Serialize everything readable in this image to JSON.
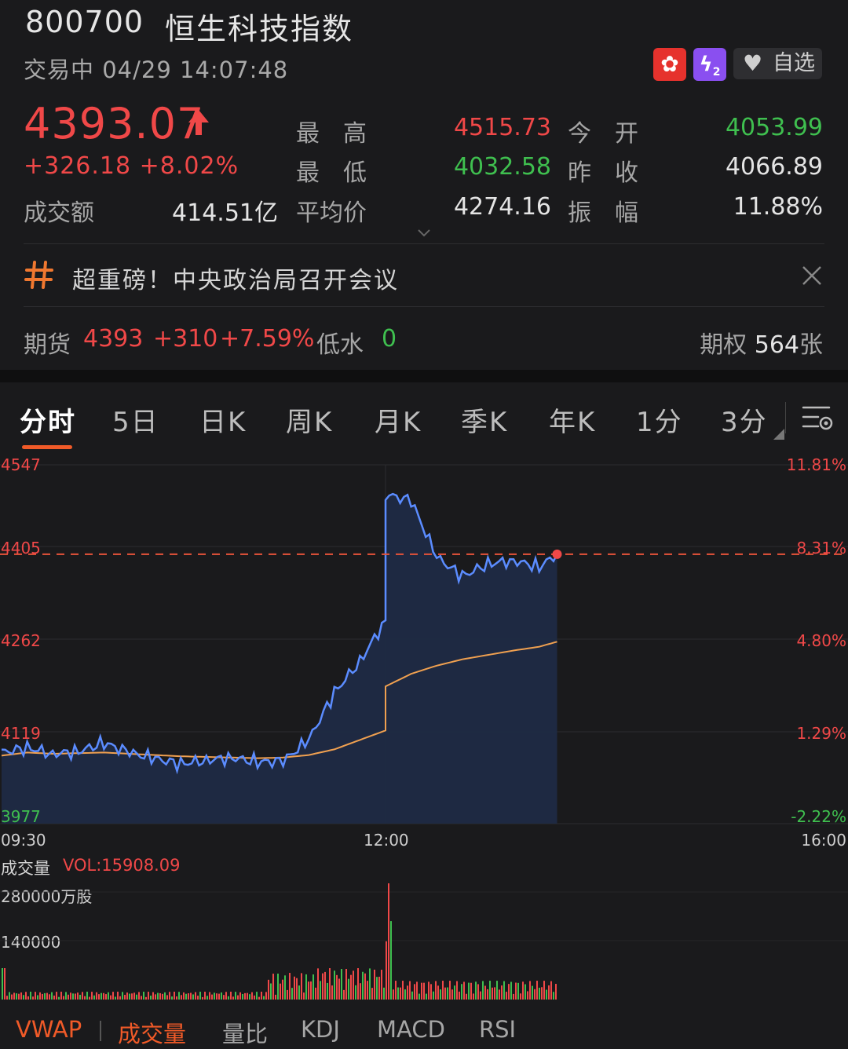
{
  "header": {
    "code": "800700",
    "name": "恒生科技指数",
    "status": "交易中 04/29 14:07:48",
    "badges": {
      "market": "hk-flag-icon",
      "level": "L2"
    },
    "favorite_label": "自选"
  },
  "quote": {
    "price": "4393.07",
    "change": "+326.18 +8.02%",
    "turnover_label": "成交额",
    "turnover_value": "414.51亿",
    "stats": [
      {
        "label": "最　高",
        "value": "4515.73",
        "color": "#f04848"
      },
      {
        "label": "今　开",
        "value": "4053.99",
        "color": "#3fbf4f"
      },
      {
        "label": "最　低",
        "value": "4032.58",
        "color": "#3fbf4f"
      },
      {
        "label": "昨　收",
        "value": "4066.89",
        "color": "#e4e4e4"
      },
      {
        "label": "平均价",
        "value": "4274.16",
        "color": "#e4e4e4"
      },
      {
        "label": "振　幅",
        "value": "11.88%",
        "color": "#e4e4e4"
      }
    ]
  },
  "news": {
    "text": "超重磅！中央政治局召开会议"
  },
  "futures": {
    "label": "期货",
    "price": "4393",
    "change": "+310",
    "pct": "+7.59%",
    "discount_label": "低水",
    "discount_value": "0",
    "options_label": "期权",
    "options_value": "564",
    "options_unit": "张"
  },
  "tabs": [
    "分时",
    "5日",
    "日K",
    "周K",
    "月K",
    "季K",
    "年K",
    "1分",
    "3分"
  ],
  "active_tab": "分时",
  "chart_axis": {
    "price_ticks": [
      "4547",
      "4405",
      "4262",
      "4119",
      "3977"
    ],
    "pct_ticks": [
      "11.81%",
      "8.31%",
      "4.80%",
      "1.29%",
      "-2.22%"
    ],
    "time_ticks": [
      "09:30",
      "12:00",
      "16:00"
    ]
  },
  "volume": {
    "label": "成交量",
    "value": "VOL:15908.09",
    "ticks": [
      "280000万股",
      "140000"
    ]
  },
  "indicator_tabs": [
    "VWAP",
    "成交量",
    "量比",
    "KDJ",
    "MACD",
    "RSI"
  ],
  "active_indicator": "成交量",
  "colors": {
    "up": "#f04848",
    "down": "#3fbf4f",
    "accent": "#f05a28",
    "price_line": "#5b8cff",
    "avg_line": "#f0a050"
  },
  "chart_data": {
    "type": "line",
    "x": [
      "09:30",
      "09:40",
      "09:50",
      "10:00",
      "10:10",
      "10:20",
      "10:30",
      "10:40",
      "10:50",
      "11:00",
      "11:10",
      "11:20",
      "11:30",
      "11:40",
      "11:50",
      "12:00",
      "13:00",
      "13:10",
      "13:20",
      "13:30",
      "13:40",
      "13:50",
      "14:00",
      "14:07"
    ],
    "series": [
      {
        "values": [
          4090,
          4098,
          4088,
          4092,
          4105,
          4090,
          4080,
          4072,
          4078,
          4082,
          4075,
          4076,
          4110,
          4185,
          4235,
          4300,
          4500,
          4490,
          4400,
          4370,
          4390,
          4395,
          4385,
          4405
        ]
      },
      {
        "values": [
          4085,
          4090,
          4088,
          4089,
          4090,
          4088,
          4086,
          4084,
          4083,
          4082,
          4081,
          4082,
          4086,
          4095,
          4110,
          4125,
          4195,
          4215,
          4228,
          4238,
          4245,
          4252,
          4258,
          4266
        ]
      }
    ],
    "ylim": [
      3977,
      4547
    ],
    "reference_line": 4405
  }
}
